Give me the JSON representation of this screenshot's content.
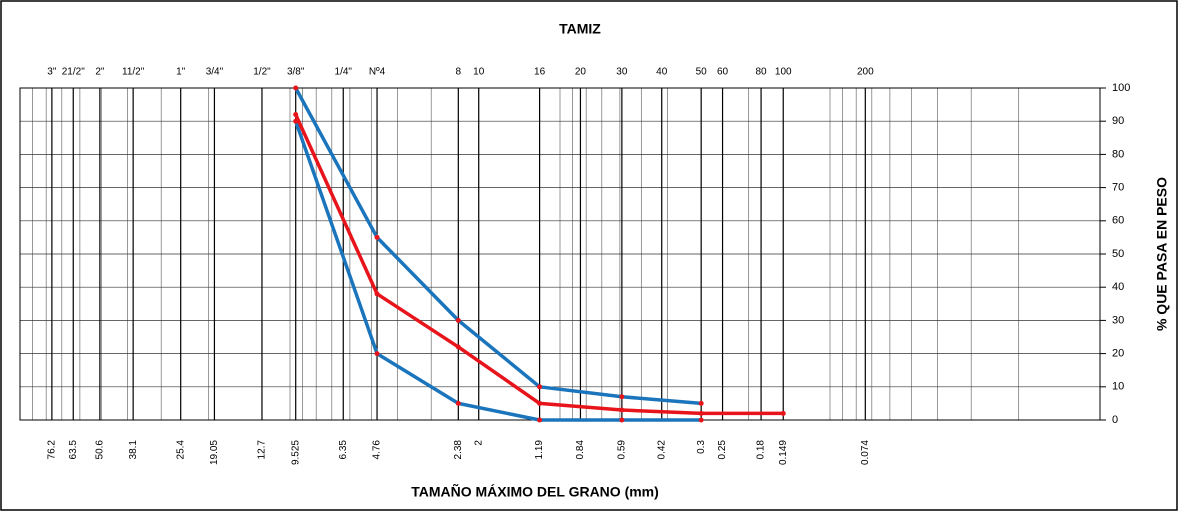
{
  "chart_data": {
    "type": "line",
    "title": "TAMIZ",
    "x_label": "TAMAÑO MÁXIMO DEL GRANO (mm)",
    "y_label": "% QUE PASA EN PESO",
    "log_x": true,
    "xlim": [
      100,
      0.01
    ],
    "xticks": [
      76.2,
      63.5,
      50.6,
      38.1,
      25.4,
      19.05,
      12.7,
      9.525,
      6.35,
      4.76,
      2.38,
      2,
      1.19,
      0.84,
      0.59,
      0.42,
      0.3,
      0.25,
      0.18,
      0.149,
      0.074
    ],
    "sieve_labels": [
      "3\"",
      "21/2\"",
      "2\"",
      "11/2\"",
      "1\"",
      "3/4\"",
      "1/2\"",
      "3/8\"",
      "1/4\"",
      "Nº4",
      "8",
      "10",
      "16",
      "20",
      "30",
      "40",
      "50",
      "60",
      "80",
      "100",
      "200"
    ],
    "x_minor_grid": [
      90,
      80,
      70,
      60,
      50,
      40,
      30,
      20,
      10,
      9,
      8,
      7,
      6,
      5,
      4,
      3,
      2,
      1,
      0.9,
      0.8,
      0.7,
      0.6,
      0.5,
      0.4,
      0.3,
      0.2,
      0.1,
      0.09,
      0.08,
      0.07,
      0.06,
      0.05,
      0.04,
      0.03,
      0.02
    ],
    "ylim": [
      0,
      100
    ],
    "yticks": [
      0,
      10,
      20,
      30,
      40,
      50,
      60,
      70,
      80,
      90,
      100
    ],
    "grid": true,
    "series": [
      {
        "color": "#1b75bc",
        "x": [
          9.525,
          4.76,
          2.38,
          1.19,
          0.59,
          0.3
        ],
        "values": [
          100,
          55,
          30,
          10,
          7,
          5
        ]
      },
      {
        "color": "#1b75bc",
        "x": [
          9.525,
          4.76,
          2.38,
          1.19,
          0.59,
          0.3
        ],
        "values": [
          90,
          20,
          5,
          0,
          0,
          0
        ]
      },
      {
        "color": "#e8141b",
        "x": [
          9.525,
          4.76,
          2.38,
          1.19,
          0.59,
          0.3,
          0.149
        ],
        "values": [
          92,
          38,
          22,
          5,
          3,
          2,
          2
        ]
      }
    ]
  }
}
